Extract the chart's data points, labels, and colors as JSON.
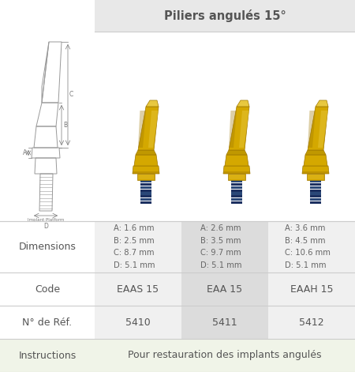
{
  "title": "Piliers angulés 15°",
  "title_bg": "#e8e8e8",
  "bg_color": "#ffffff",
  "instructions_bg": "#f0f4e8",
  "header_text_color": "#555555",
  "row_labels": [
    "Dimensions",
    "Code",
    "N° de Réf.",
    "Instructions"
  ],
  "col1_dims": "A: 1.6 mm\nB: 2.5 mm\nC: 8.7 mm\nD: 5.1 mm",
  "col2_dims": "A: 2.6 mm\nB: 3.5 mm\nC: 9.7 mm\nD: 5.1 mm",
  "col3_dims": "A: 3.6 mm\nB: 4.5 mm\nC: 10.6 mm\nD: 5.1 mm",
  "col1_code": "EAAS 15",
  "col2_code": "EAA 15",
  "col3_code": "EAAH 15",
  "col1_ref": "5410",
  "col2_ref": "5411",
  "col3_ref": "5412",
  "instructions_text": "Pour restauration des implants angulés",
  "implant_platform_label": "Implant Platform",
  "gold": "#D4A800",
  "gold_light": "#E8C840",
  "gold_dark": "#A07800",
  "gold_mid": "#C09800",
  "blue_screw": "#1C3060",
  "line_color": "#cccccc",
  "col_mid_bg": "#dcdcdc",
  "col_side_bg": "#f0f0f0",
  "label_col_bg": "#ffffff",
  "text_color": "#555555",
  "dim_text_color": "#666666"
}
